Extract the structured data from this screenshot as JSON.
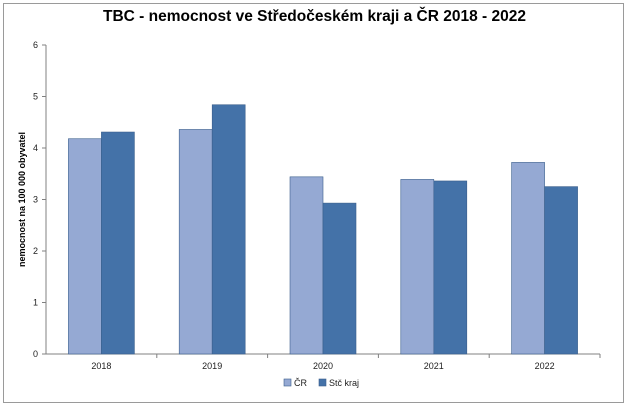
{
  "chart_data": {
    "type": "bar",
    "title": "TBC - nemocnost ve Středočeském kraji a ČR 2018 - 2022",
    "xlabel": "",
    "ylabel": "nemocnost na 100 000 obyvatel",
    "categories": [
      "2018",
      "2019",
      "2020",
      "2021",
      "2022"
    ],
    "series": [
      {
        "name": "ČR",
        "values": [
          4.18,
          4.36,
          3.44,
          3.39,
          3.72
        ],
        "color": "#95a9d3"
      },
      {
        "name": "Stč kraj",
        "values": [
          4.31,
          4.84,
          2.93,
          3.36,
          3.25
        ],
        "color": "#4472a8"
      }
    ],
    "ylim": [
      0,
      6
    ],
    "yticks": [
      "0",
      "1",
      "2",
      "3",
      "4",
      "5",
      "6"
    ],
    "grid": false,
    "legend": "bottom"
  }
}
